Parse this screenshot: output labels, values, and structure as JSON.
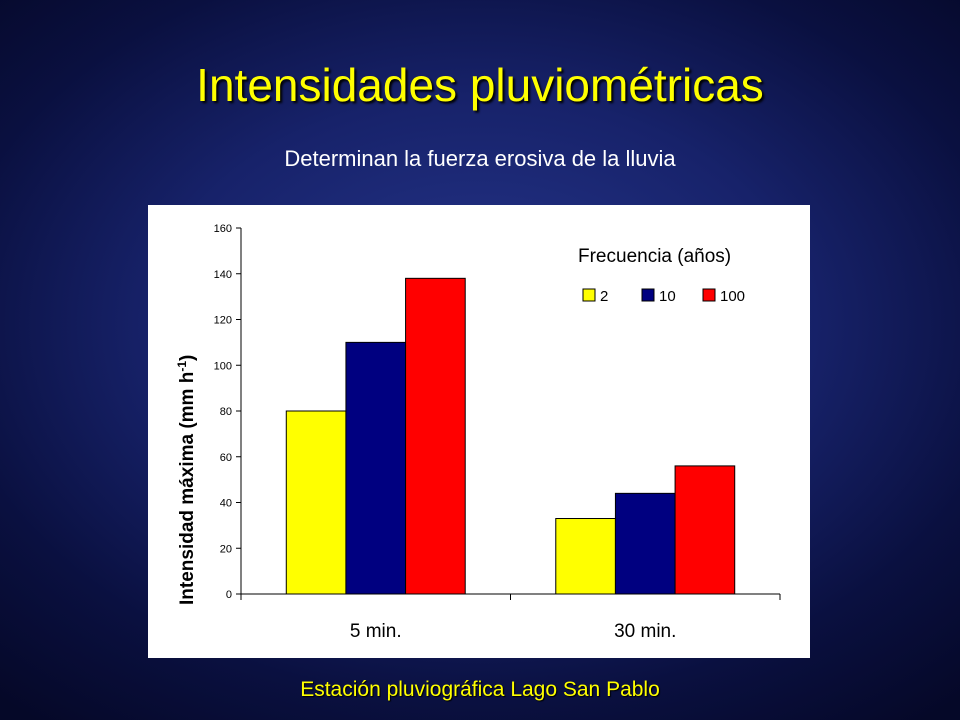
{
  "slide": {
    "title": "Intensidades pluviométricas",
    "subtitle": "Determinan la fuerza erosiva de la lluvia",
    "footer": "Estación pluviográfica Lago San Pablo"
  },
  "colors": {
    "title": "#ffff00",
    "subtitle": "#ffffff",
    "background": "#17226a",
    "series_2": "#ffff00",
    "series_10": "#000080",
    "series_100": "#ff0000"
  },
  "chart_data": {
    "type": "bar",
    "categories": [
      "5 min.",
      "30 min."
    ],
    "series": [
      {
        "name": "2",
        "values": [
          80,
          33
        ],
        "color": "#ffff00"
      },
      {
        "name": "10",
        "values": [
          110,
          44
        ],
        "color": "#000080"
      },
      {
        "name": "100",
        "values": [
          138,
          56
        ],
        "color": "#ff0000"
      }
    ],
    "ylabel": "Intensidad máxima (mm h",
    "ylabel_sup": "-1",
    "ylabel_close": ")",
    "ylim": [
      0,
      160
    ],
    "yticks": [
      0,
      20,
      40,
      60,
      80,
      100,
      120,
      140,
      160
    ],
    "legend_title": "Frecuencia (años)",
    "legend_position": "top-right",
    "grid": false
  }
}
